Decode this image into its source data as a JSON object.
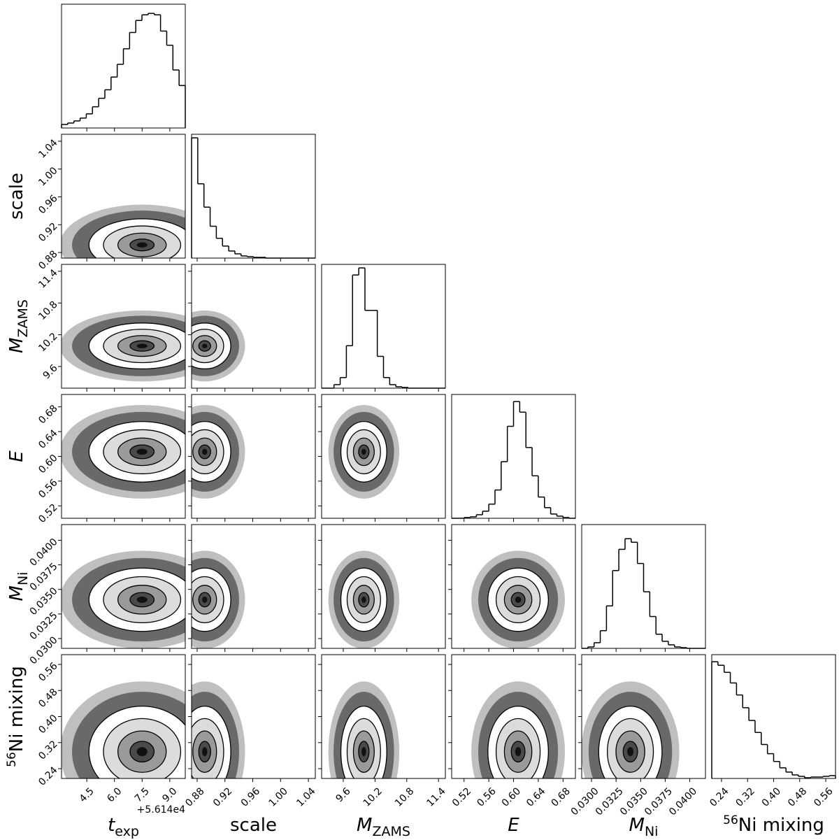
{
  "chart_data": {
    "type": "corner",
    "offset_label": "+5.614e4",
    "hist_ylim": [
      0,
      175
    ],
    "params": [
      {
        "label": "t",
        "label_sub": "exp",
        "xlim": [
          3.13,
          9.84
        ],
        "xticks": [
          4.5,
          {
            "value": 6,
            "label": "6.0"
          },
          7.5,
          {
            "value": 9,
            "label": "9.0"
          }
        ],
        "bins": [
          3.13,
          3.4655,
          3.801,
          4.1365,
          4.472,
          4.8075,
          5.143,
          5.4785,
          5.814,
          6.1495,
          6.485,
          6.8205,
          7.156,
          7.4915,
          7.827,
          8.1625,
          8.498,
          8.8335,
          9.169,
          9.5045,
          9.84
        ],
        "counts": [
          5,
          7,
          10,
          14,
          20,
          30,
          42,
          54,
          72,
          90,
          112,
          135,
          152,
          160,
          162,
          160,
          137,
          117,
          82,
          60
        ]
      },
      {
        "label": "scale",
        "xlim": [
          0.872,
          1.05
        ],
        "xticks": [
          0.88,
          0.92,
          0.96,
          {
            "value": 1,
            "label": "1.00"
          },
          1.04
        ],
        "bins": [
          0.872,
          0.8809,
          0.8898,
          0.8987,
          0.9076,
          0.9165,
          0.9254,
          0.9343,
          0.9432,
          0.9521,
          0.961,
          0.9699,
          0.9788,
          0.9877,
          0.9966,
          1.0055,
          1.0144,
          1.0233,
          1.0322,
          1.0411,
          1.05
        ],
        "counts": [
          170,
          105,
          72,
          45,
          28,
          17,
          10,
          6,
          3,
          2,
          1,
          1,
          0,
          0,
          0,
          0,
          0,
          0,
          0,
          0
        ]
      },
      {
        "label": "M",
        "label_sub": "ZAMS",
        "xlim": [
          9.19,
          11.53
        ],
        "xticks": [
          9.6,
          10.2,
          10.8,
          11.4
        ],
        "bins": [
          9.19,
          9.307,
          9.424,
          9.541,
          9.658,
          9.775,
          9.892,
          10.009,
          10.126,
          10.243,
          10.36,
          10.477,
          10.594,
          10.711,
          10.828,
          10.945,
          11.062,
          11.179,
          11.296,
          11.413,
          11.53
        ],
        "counts": [
          0,
          0,
          5,
          15,
          60,
          160,
          170,
          110,
          110,
          45,
          15,
          5,
          2,
          1,
          0,
          0,
          0,
          0,
          0,
          0
        ]
      },
      {
        "label": "E",
        "xlim": [
          0.5,
          0.7
        ],
        "xticks": [
          0.52,
          0.56,
          {
            "value": 0.6,
            "label": "0.60"
          },
          0.64,
          0.68
        ],
        "bins": [
          0.5,
          0.51,
          0.52,
          0.53,
          0.54,
          0.55,
          0.56,
          0.57,
          0.58,
          0.59,
          0.6,
          0.61,
          0.62,
          0.63,
          0.64,
          0.65,
          0.66,
          0.67,
          0.68,
          0.69,
          0.7
        ],
        "counts": [
          0,
          0,
          1,
          2,
          5,
          10,
          20,
          40,
          80,
          130,
          165,
          150,
          100,
          60,
          30,
          15,
          6,
          3,
          1,
          0
        ]
      },
      {
        "label": "M",
        "label_sub": "Ni",
        "xlim": [
          0.029,
          0.0416
        ],
        "xticks": [
          {
            "value": 0.03,
            "label": "0.0300"
          },
          0.0325,
          {
            "value": 0.035,
            "label": "0.0350"
          },
          0.0375,
          {
            "value": 0.04,
            "label": "0.0400"
          }
        ],
        "bins": [
          0.029,
          0.02963,
          0.03026,
          0.03089,
          0.03152,
          0.03215,
          0.03278,
          0.03341,
          0.03404,
          0.03467,
          0.0353,
          0.03593,
          0.03656,
          0.03719,
          0.03782,
          0.03845,
          0.03908,
          0.03971,
          0.04034,
          0.04097,
          0.0416
        ],
        "counts": [
          0,
          2,
          8,
          25,
          60,
          110,
          140,
          155,
          150,
          120,
          80,
          45,
          20,
          10,
          5,
          2,
          1,
          0,
          0,
          0
        ]
      },
      {
        "label": "Ni mixing",
        "label_sup": "56",
        "xlim": [
          0.21,
          0.59
        ],
        "xticks": [
          0.24,
          0.32,
          {
            "value": 0.4,
            "label": "0.40"
          },
          0.48,
          0.56
        ],
        "bins": [
          0.21,
          0.229,
          0.248,
          0.267,
          0.286,
          0.305,
          0.324,
          0.343,
          0.362,
          0.381,
          0.4,
          0.419,
          0.438,
          0.457,
          0.476,
          0.495,
          0.514,
          0.533,
          0.552,
          0.571,
          0.59
        ],
        "counts": [
          165,
          160,
          150,
          135,
          118,
          100,
          82,
          65,
          48,
          35,
          24,
          15,
          9,
          5,
          3,
          1,
          2,
          2,
          3,
          4
        ]
      }
    ]
  }
}
